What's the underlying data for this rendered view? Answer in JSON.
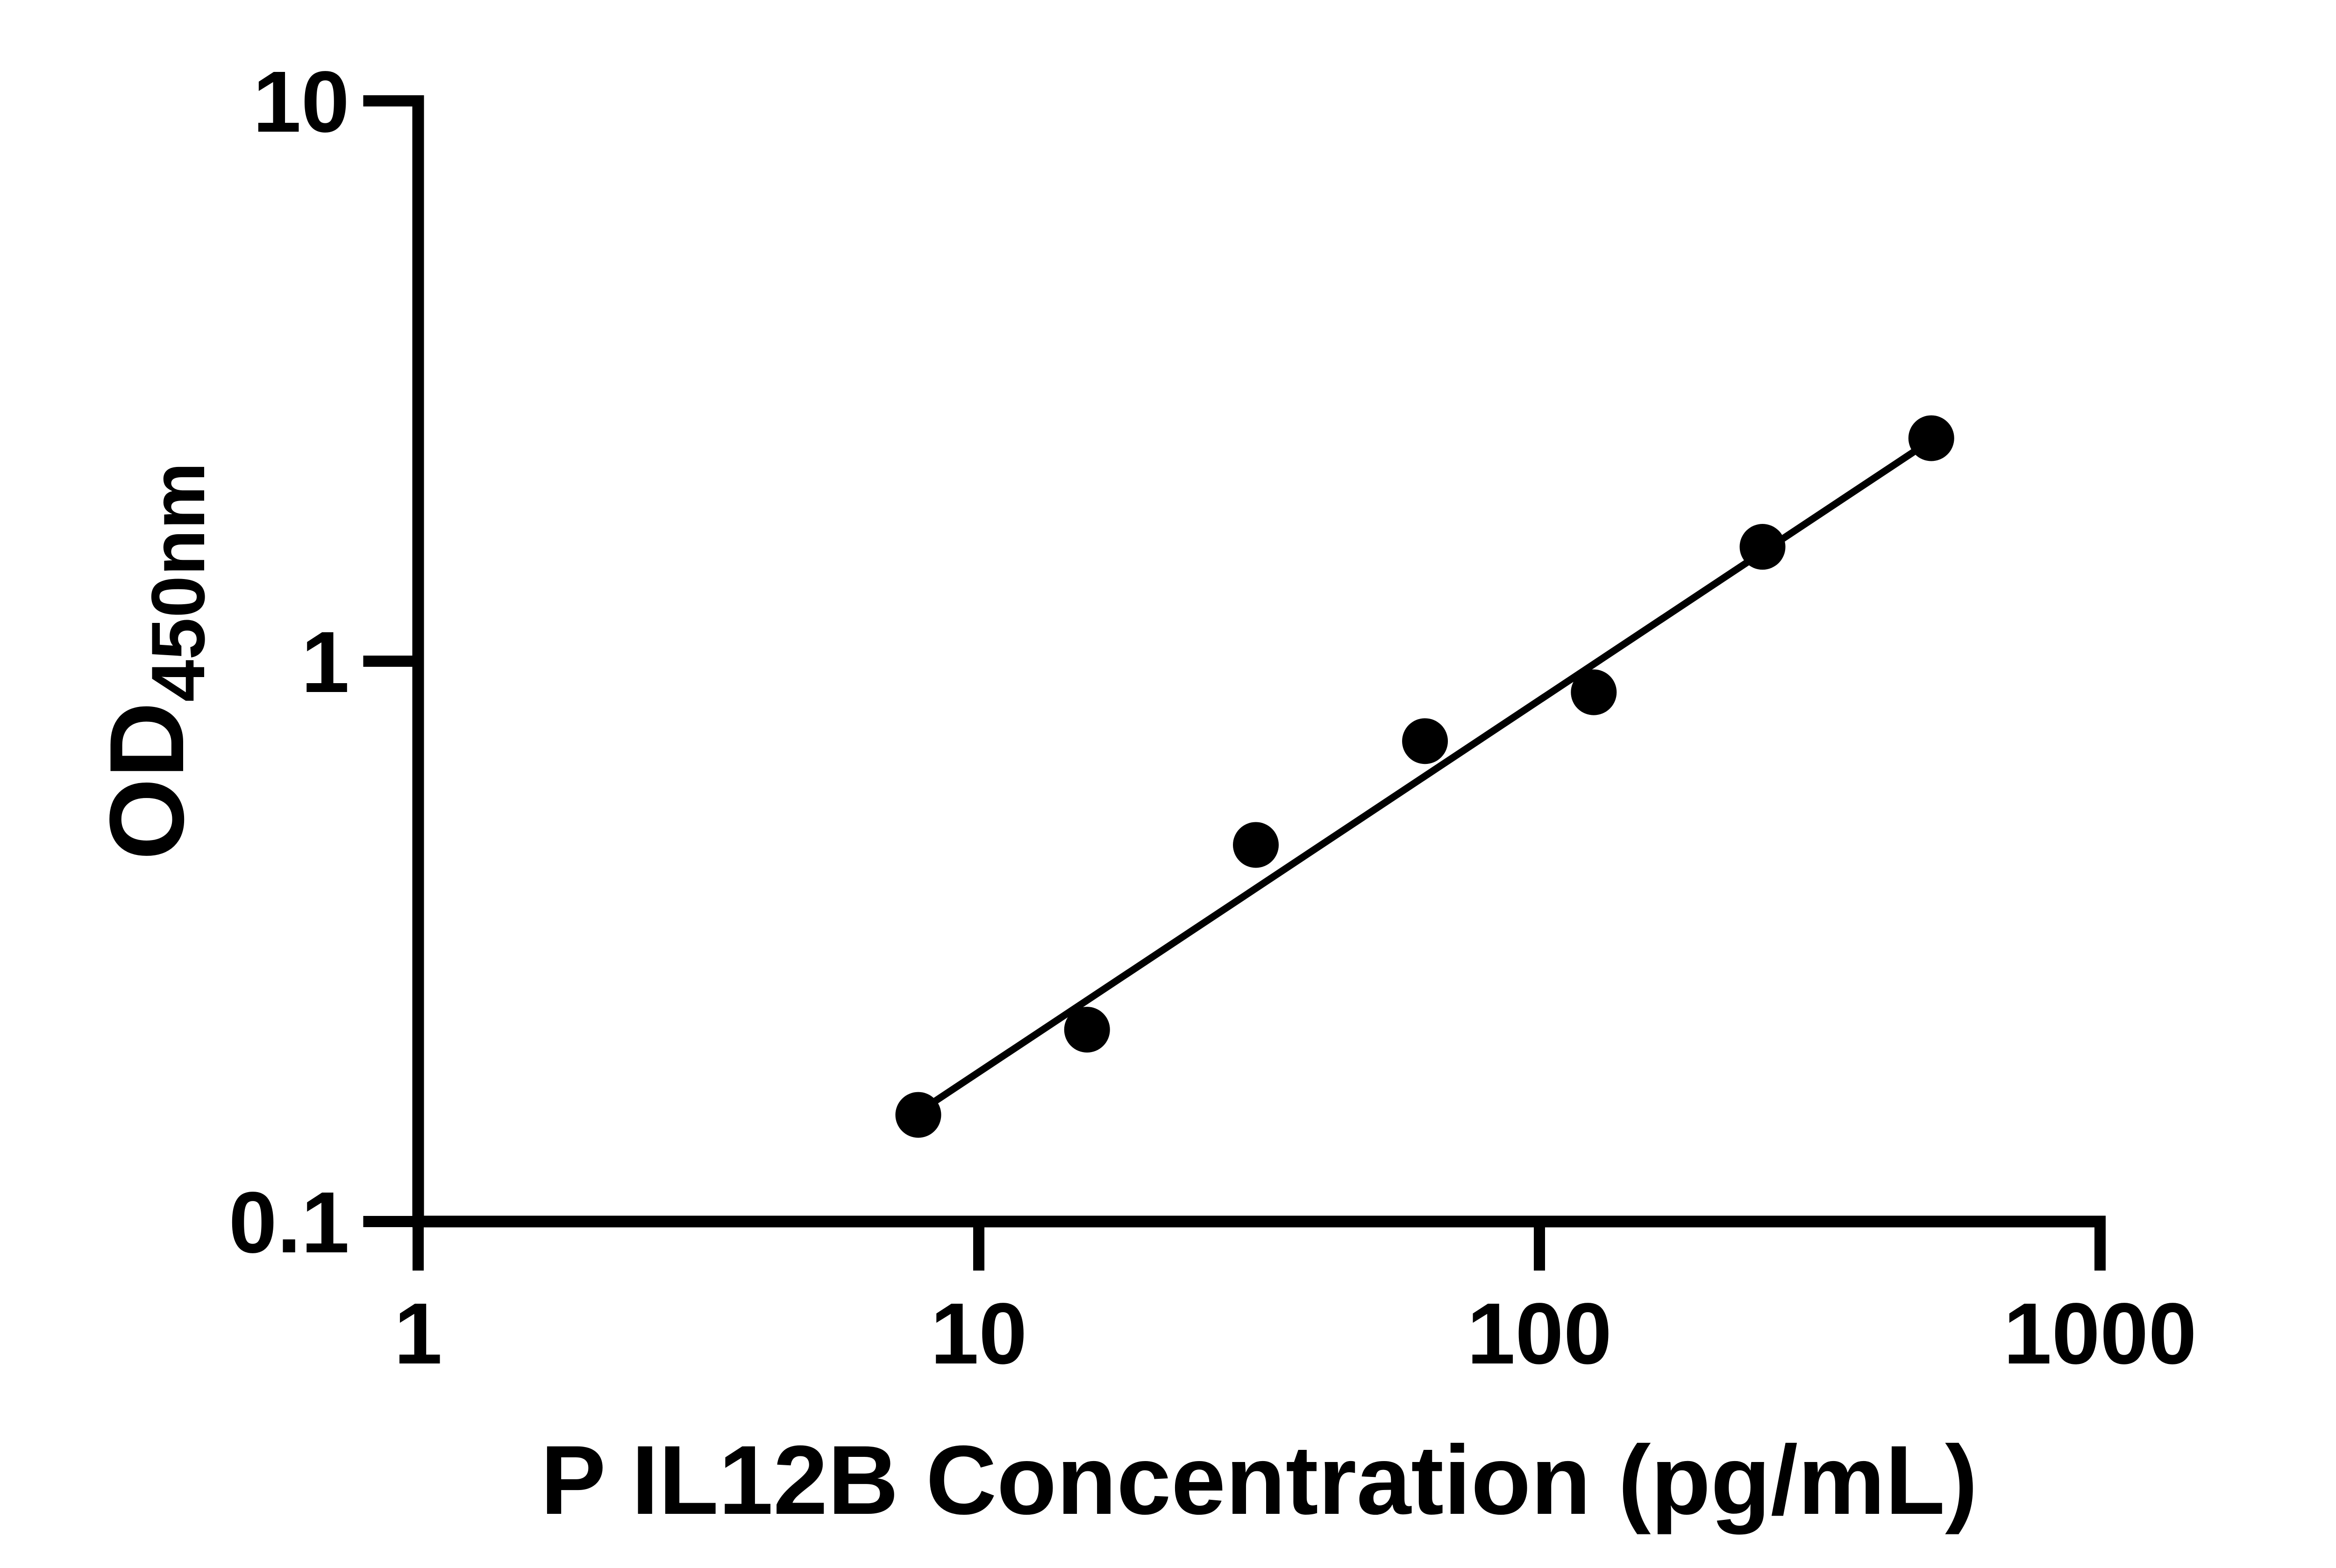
{
  "chart_data": {
    "type": "scatter",
    "title": "",
    "xlabel": "P IL12B Concentration (pg/mL)",
    "ylabel_main": "OD",
    "ylabel_sub": "450nm",
    "x_scale": "log",
    "y_scale": "log",
    "xlim": [
      1,
      1000
    ],
    "ylim": [
      0.1,
      10
    ],
    "x_ticks": [
      1,
      10,
      100,
      1000
    ],
    "x_tick_labels": [
      "1",
      "10",
      "100",
      "1000"
    ],
    "y_ticks": [
      0.1,
      1,
      10
    ],
    "y_tick_labels": [
      "0.1",
      "1",
      "10"
    ],
    "grid": "off",
    "legend": "none",
    "marker": "filled-circle",
    "points": [
      {
        "x": 7.8,
        "y": 0.155
      },
      {
        "x": 15.6,
        "y": 0.22
      },
      {
        "x": 31.2,
        "y": 0.47
      },
      {
        "x": 62.5,
        "y": 0.72
      },
      {
        "x": 125,
        "y": 0.88
      },
      {
        "x": 250,
        "y": 1.6
      },
      {
        "x": 500,
        "y": 2.5
      }
    ],
    "trend_line": {
      "type": "linear-fit-loglog",
      "x1": 7.9,
      "y1": 0.158,
      "x2": 497,
      "y2": 2.47
    },
    "colors": {
      "foreground": "#000000",
      "background": "#ffffff"
    }
  }
}
